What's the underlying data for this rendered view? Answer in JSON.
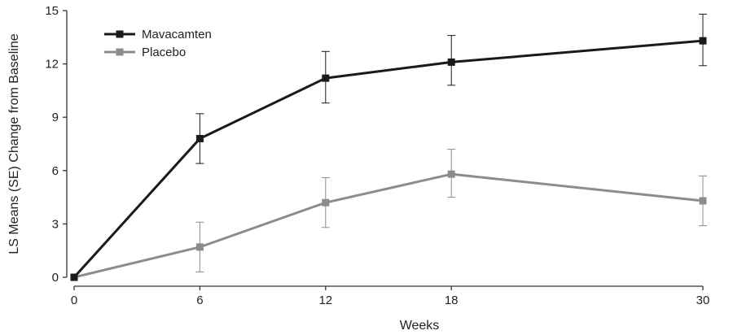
{
  "chart_data": {
    "type": "line",
    "title": "",
    "xlabel": "Weeks",
    "ylabel": "LS Means (SE) Change from Baseline",
    "x": [
      0,
      6,
      12,
      18,
      30
    ],
    "x_ticks": [
      "0",
      "6",
      "12",
      "18",
      "30"
    ],
    "y_ticks": [
      "0",
      "3",
      "6",
      "9",
      "12",
      "15"
    ],
    "xlim": [
      0,
      30
    ],
    "ylim": [
      0,
      15
    ],
    "grid": false,
    "legend_position": "top-left",
    "series": [
      {
        "name": "Mavacamten",
        "color": "#1a1a1a",
        "marker": "square",
        "values": [
          0,
          7.8,
          11.2,
          12.1,
          13.3
        ],
        "error_low": [
          0,
          6.4,
          9.8,
          10.8,
          11.9
        ],
        "error_high": [
          0,
          9.2,
          12.7,
          13.6,
          14.8
        ]
      },
      {
        "name": "Placebo",
        "color": "#8c8c8c",
        "marker": "square",
        "values": [
          0,
          1.7,
          4.2,
          5.8,
          4.3
        ],
        "error_low": [
          0,
          0.3,
          2.8,
          4.5,
          2.9
        ],
        "error_high": [
          0,
          3.1,
          5.6,
          7.2,
          5.7
        ]
      }
    ]
  }
}
